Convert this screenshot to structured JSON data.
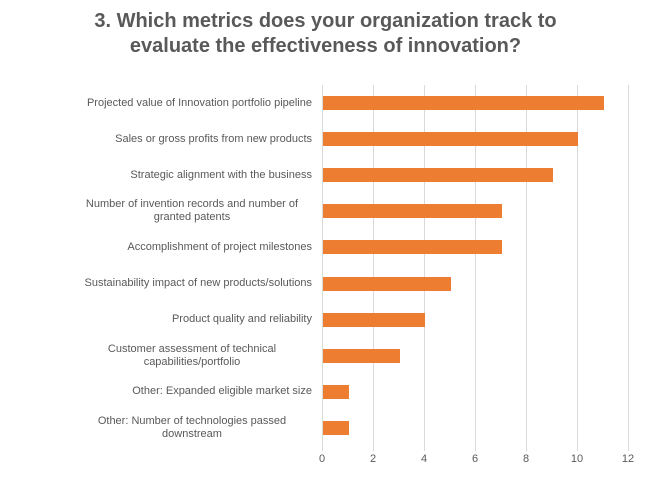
{
  "chart_data": {
    "type": "bar",
    "orientation": "horizontal",
    "title": "3. Which metrics does your organization track to evaluate the effectiveness of innovation?",
    "categories": [
      "Projected value of Innovation portfolio pipeline",
      "Sales or gross profits from new products",
      "Strategic alignment with the business",
      "Number of invention records and number of granted patents",
      "Accomplishment of project milestones",
      "Sustainability impact of new products/solutions",
      "Product quality and reliability",
      "Customer assessment of technical capabilities/portfolio",
      "Other: Expanded eligible market size",
      "Other: Number of technologies passed downstream"
    ],
    "values": [
      11,
      10,
      9,
      7,
      7,
      5,
      4,
      3,
      1,
      1
    ],
    "xlabel": "",
    "ylabel": "",
    "xlim": [
      0,
      12
    ],
    "x_ticks": [
      0,
      2,
      4,
      6,
      8,
      10,
      12
    ],
    "grid": true,
    "legend": false,
    "colors": {
      "bar": "#ED7D31",
      "title_text": "#595959",
      "axis_text": "#595959",
      "gridline": "#D9D9D9",
      "background": "#FFFFFF"
    }
  }
}
